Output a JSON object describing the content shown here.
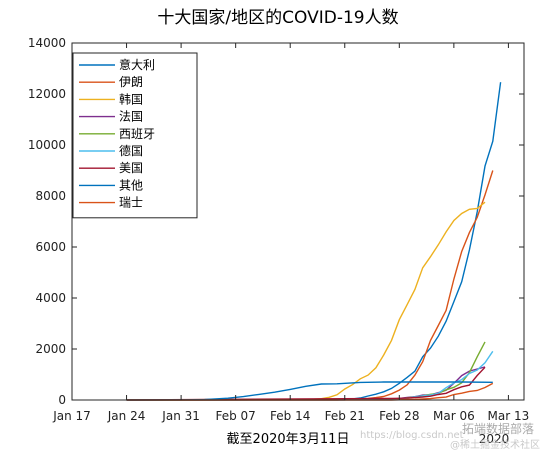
{
  "chart_data": {
    "type": "line",
    "title": "十大国家/地区的COVID-19人数",
    "xlabel": "截至2020年3月11日",
    "ylabel": "",
    "x_tick_labels": [
      "Jan 17",
      "Jan 24",
      "Jan 31",
      "Feb 07",
      "Feb 14",
      "Feb 21",
      "Feb 28",
      "Mar 06",
      "Mar 13"
    ],
    "x_ticks_day": [
      0,
      7,
      14,
      21,
      28,
      35,
      42,
      49,
      56
    ],
    "x_corner_year": "2020",
    "xlim_day": [
      0,
      58
    ],
    "ylim": [
      0,
      14000
    ],
    "y_ticks": [
      0,
      2000,
      4000,
      6000,
      8000,
      10000,
      12000,
      14000
    ],
    "grid": false,
    "legend_position": "top-left",
    "series": [
      {
        "name": "意大利",
        "color": "#0072BD",
        "points": [
          [
            7,
            0
          ],
          [
            35,
            3
          ],
          [
            37,
            79
          ],
          [
            38,
            155
          ],
          [
            39,
            229
          ],
          [
            40,
            322
          ],
          [
            41,
            453
          ],
          [
            42,
            655
          ],
          [
            43,
            888
          ],
          [
            44,
            1128
          ],
          [
            45,
            1694
          ],
          [
            46,
            2036
          ],
          [
            47,
            2502
          ],
          [
            48,
            3089
          ],
          [
            49,
            3858
          ],
          [
            50,
            4636
          ],
          [
            51,
            5883
          ],
          [
            52,
            7375
          ],
          [
            53,
            9172
          ],
          [
            54,
            10149
          ],
          [
            55,
            12462
          ]
        ]
      },
      {
        "name": "伊朗",
        "color": "#D95319",
        "points": [
          [
            7,
            0
          ],
          [
            33,
            2
          ],
          [
            34,
            5
          ],
          [
            35,
            18
          ],
          [
            36,
            28
          ],
          [
            37,
            43
          ],
          [
            38,
            61
          ],
          [
            39,
            95
          ],
          [
            40,
            139
          ],
          [
            41,
            245
          ],
          [
            42,
            388
          ],
          [
            43,
            593
          ],
          [
            44,
            978
          ],
          [
            45,
            1501
          ],
          [
            46,
            2336
          ],
          [
            47,
            2922
          ],
          [
            48,
            3513
          ],
          [
            49,
            4747
          ],
          [
            50,
            5823
          ],
          [
            51,
            6566
          ],
          [
            52,
            7161
          ],
          [
            53,
            8042
          ],
          [
            54,
            9000
          ]
        ]
      },
      {
        "name": "韩国",
        "color": "#EDB120",
        "points": [
          [
            7,
            1
          ],
          [
            30,
            30
          ],
          [
            31,
            31
          ],
          [
            32,
            51
          ],
          [
            33,
            104
          ],
          [
            34,
            204
          ],
          [
            35,
            433
          ],
          [
            36,
            602
          ],
          [
            37,
            833
          ],
          [
            38,
            977
          ],
          [
            39,
            1261
          ],
          [
            40,
            1766
          ],
          [
            41,
            2337
          ],
          [
            42,
            3150
          ],
          [
            43,
            3736
          ],
          [
            44,
            4335
          ],
          [
            45,
            5186
          ],
          [
            46,
            5621
          ],
          [
            47,
            6088
          ],
          [
            48,
            6593
          ],
          [
            49,
            7041
          ],
          [
            50,
            7314
          ],
          [
            51,
            7478
          ],
          [
            52,
            7513
          ],
          [
            53,
            7755
          ]
        ]
      },
      {
        "name": "法国",
        "color": "#7E2F8E",
        "points": [
          [
            7,
            0
          ],
          [
            40,
            12
          ],
          [
            41,
            38
          ],
          [
            42,
            57
          ],
          [
            43,
            100
          ],
          [
            44,
            130
          ],
          [
            45,
            191
          ],
          [
            46,
            204
          ],
          [
            47,
            288
          ],
          [
            48,
            380
          ],
          [
            49,
            656
          ],
          [
            50,
            957
          ],
          [
            51,
            1134
          ],
          [
            52,
            1217
          ],
          [
            53,
            1300
          ]
        ]
      },
      {
        "name": "西班牙",
        "color": "#77AC30",
        "points": [
          [
            7,
            0
          ],
          [
            40,
            13
          ],
          [
            41,
            32
          ],
          [
            42,
            45
          ],
          [
            43,
            84
          ],
          [
            44,
            120
          ],
          [
            45,
            165
          ],
          [
            46,
            222
          ],
          [
            47,
            259
          ],
          [
            48,
            400
          ],
          [
            49,
            500
          ],
          [
            50,
            673
          ],
          [
            51,
            1073
          ],
          [
            52,
            1695
          ],
          [
            53,
            2277
          ]
        ]
      },
      {
        "name": "德国",
        "color": "#4DBEEE",
        "points": [
          [
            7,
            0
          ],
          [
            19,
            16
          ],
          [
            36,
            16
          ],
          [
            39,
            18
          ],
          [
            40,
            21
          ],
          [
            41,
            26
          ],
          [
            42,
            57
          ],
          [
            43,
            57
          ],
          [
            44,
            129
          ],
          [
            45,
            157
          ],
          [
            46,
            196
          ],
          [
            47,
            262
          ],
          [
            48,
            482
          ],
          [
            49,
            670
          ],
          [
            50,
            799
          ],
          [
            51,
            1040
          ],
          [
            52,
            1176
          ],
          [
            53,
            1457
          ],
          [
            54,
            1908
          ]
        ]
      },
      {
        "name": "美国",
        "color": "#A2142F",
        "points": [
          [
            7,
            0
          ],
          [
            38,
            53
          ],
          [
            39,
            57
          ],
          [
            40,
            60
          ],
          [
            41,
            60
          ],
          [
            42,
            68
          ],
          [
            43,
            74
          ],
          [
            44,
            98
          ],
          [
            45,
            118
          ],
          [
            46,
            149
          ],
          [
            47,
            217
          ],
          [
            48,
            262
          ],
          [
            49,
            402
          ],
          [
            50,
            518
          ],
          [
            51,
            583
          ],
          [
            52,
            959
          ],
          [
            53,
            1281
          ]
        ]
      },
      {
        "name": "其他",
        "color": "#0072BD",
        "points": [
          [
            7,
            0
          ],
          [
            15,
            8
          ],
          [
            17,
            15
          ],
          [
            20,
            70
          ],
          [
            22,
            135
          ],
          [
            24,
            218
          ],
          [
            26,
            305
          ],
          [
            28,
            414
          ],
          [
            30,
            537
          ],
          [
            32,
            627
          ],
          [
            34,
            634
          ],
          [
            37,
            691
          ],
          [
            40,
            705
          ],
          [
            45,
            705
          ],
          [
            50,
            705
          ],
          [
            54,
            696
          ]
        ]
      },
      {
        "name": "瑞士",
        "color": "#D95319",
        "points": [
          [
            7,
            0
          ],
          [
            41,
            1
          ],
          [
            42,
            8
          ],
          [
            43,
            18
          ],
          [
            44,
            27
          ],
          [
            45,
            42
          ],
          [
            46,
            56
          ],
          [
            47,
            90
          ],
          [
            48,
            114
          ],
          [
            49,
            214
          ],
          [
            50,
            268
          ],
          [
            51,
            337
          ],
          [
            52,
            374
          ],
          [
            53,
            491
          ],
          [
            54,
            652
          ]
        ]
      }
    ]
  },
  "watermarks": {
    "url": "https://blog.csdn.net",
    "brand": "拓端数据部落",
    "community": "@稀土掘金技术社区"
  }
}
